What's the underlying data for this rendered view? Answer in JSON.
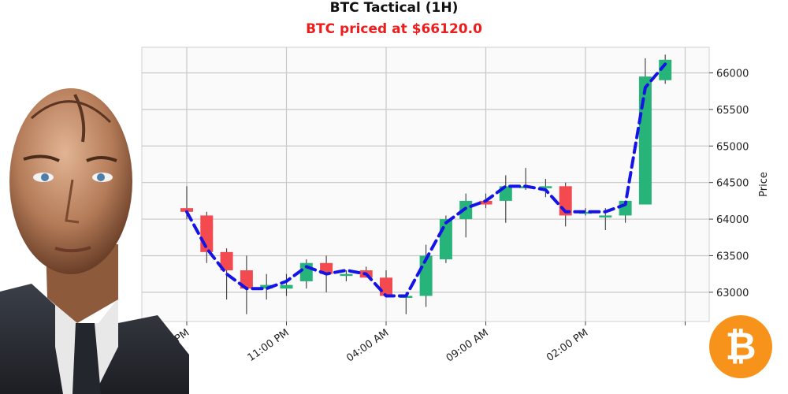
{
  "chart_data": {
    "type": "candlestick",
    "title": "BTC Tactical (1H)",
    "subtitle": "BTC priced at $66120.0",
    "ylabel": "Price",
    "xlabel": "",
    "ylim": [
      62600,
      66350
    ],
    "yticks": [
      63000,
      63500,
      64000,
      64500,
      65000,
      65500,
      66000
    ],
    "xticks": [
      {
        "index": 0,
        "label": "06:00 PM"
      },
      {
        "index": 5,
        "label": "11:00 PM"
      },
      {
        "index": 10,
        "label": "04:00 AM"
      },
      {
        "index": 15,
        "label": "09:00 AM"
      },
      {
        "index": 20,
        "label": "02:00 PM"
      },
      {
        "index": 25,
        "label": ""
      }
    ],
    "grid": true,
    "candles": [
      {
        "open": 64150,
        "high": 64450,
        "low": 64000,
        "close": 64100
      },
      {
        "open": 64050,
        "high": 64100,
        "low": 63400,
        "close": 63550
      },
      {
        "open": 63550,
        "high": 63600,
        "low": 62900,
        "close": 63300
      },
      {
        "open": 63300,
        "high": 63500,
        "low": 62700,
        "close": 63050
      },
      {
        "open": 63050,
        "high": 63250,
        "low": 62900,
        "close": 63100
      },
      {
        "open": 63050,
        "high": 63250,
        "low": 62950,
        "close": 63100
      },
      {
        "open": 63150,
        "high": 63450,
        "low": 63050,
        "close": 63400
      },
      {
        "open": 63400,
        "high": 63500,
        "low": 63000,
        "close": 63250
      },
      {
        "open": 63250,
        "high": 63300,
        "low": 63150,
        "close": 63250
      },
      {
        "open": 63300,
        "high": 63350,
        "low": 63200,
        "close": 63200
      },
      {
        "open": 63200,
        "high": 63300,
        "low": 62950,
        "close": 62950
      },
      {
        "open": 62950,
        "high": 63000,
        "low": 62700,
        "close": 62950
      },
      {
        "open": 62950,
        "high": 63650,
        "low": 62800,
        "close": 63500
      },
      {
        "open": 63450,
        "high": 64050,
        "low": 63400,
        "close": 64000
      },
      {
        "open": 64000,
        "high": 64350,
        "low": 63750,
        "close": 64250
      },
      {
        "open": 64250,
        "high": 64350,
        "low": 64150,
        "close": 64200
      },
      {
        "open": 64250,
        "high": 64600,
        "low": 63950,
        "close": 64450
      },
      {
        "open": 64450,
        "high": 64700,
        "low": 64400,
        "close": 64450
      },
      {
        "open": 64450,
        "high": 64550,
        "low": 64300,
        "close": 64450
      },
      {
        "open": 64450,
        "high": 64500,
        "low": 63900,
        "close": 64050
      },
      {
        "open": 64100,
        "high": 64150,
        "low": 64050,
        "close": 64100
      },
      {
        "open": 64050,
        "high": 64150,
        "low": 63850,
        "close": 64050
      },
      {
        "open": 64050,
        "high": 64250,
        "low": 63950,
        "close": 64250
      },
      {
        "open": 64200,
        "high": 66200,
        "low": 64200,
        "close": 65950
      },
      {
        "open": 65900,
        "high": 66250,
        "low": 65850,
        "close": 66180
      }
    ],
    "line": {
      "name": "",
      "values": [
        64100,
        63600,
        63250,
        63050,
        63050,
        63150,
        63350,
        63250,
        63300,
        63250,
        62950,
        62950,
        63450,
        63950,
        64150,
        64250,
        64450,
        64450,
        64400,
        64100,
        64100,
        64100,
        64200,
        65800,
        66120
      ]
    }
  },
  "colors": {
    "up": "#26b47a",
    "down": "#f24a4f",
    "wick": "#3a3a3a",
    "line": "#1414e6",
    "grid": "#c8c8c8",
    "plot_bg": "#fafafa",
    "subtitle": "#ee1c1c",
    "logo_bg": "#f7931a"
  },
  "badges": {
    "logo_icon": "bitcoin-icon",
    "logo_glyph": "₿",
    "avatar_icon": "android-avatar-illustration"
  }
}
